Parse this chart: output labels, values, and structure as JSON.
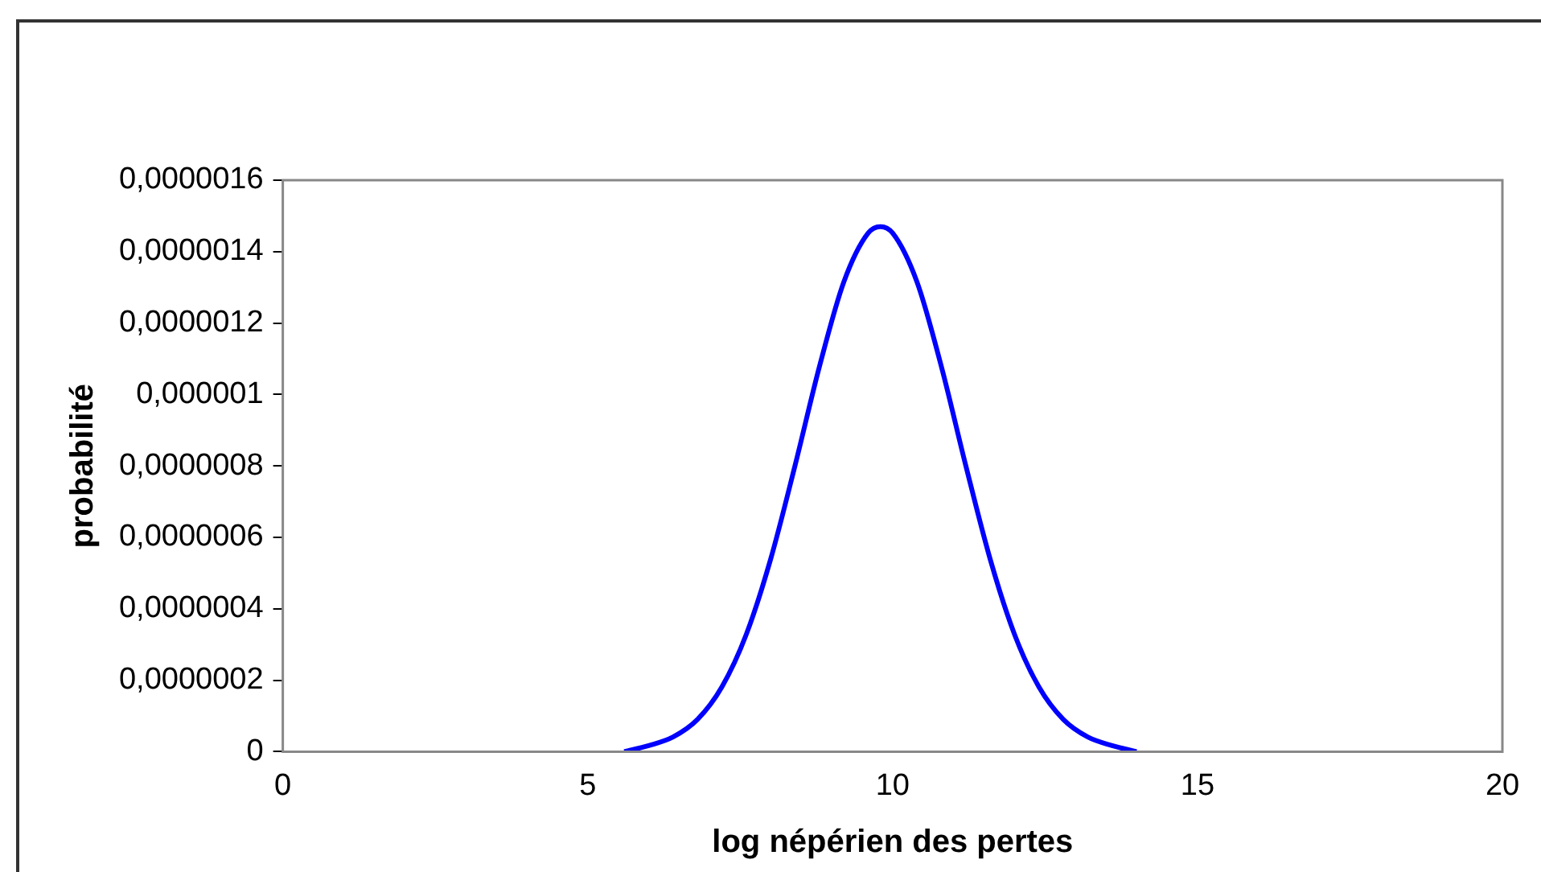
{
  "chart_data": {
    "type": "line",
    "xlabel": "log népérien des pertes",
    "ylabel": "probabilité",
    "x": [
      5.6,
      6.0,
      6.4,
      6.8,
      7.2,
      7.6,
      8.0,
      8.4,
      8.8,
      9.2,
      9.6,
      9.8,
      10.0,
      10.4,
      10.8,
      11.2,
      11.6,
      12.0,
      12.4,
      12.8,
      13.2,
      13.6,
      14.0
    ],
    "series": [
      {
        "color": "#0000ff",
        "values": [
          0,
          1.7e-08,
          4.1e-08,
          9e-08,
          1.81e-07,
          3.28e-07,
          5.39e-07,
          8.01e-07,
          1.078e-06,
          1.315e-06,
          1.452e-06,
          1.47e-06,
          1.452e-06,
          1.315e-06,
          1.078e-06,
          8.01e-07,
          5.39e-07,
          3.28e-07,
          1.81e-07,
          9e-08,
          4.1e-08,
          1.7e-08,
          0
        ]
      }
    ],
    "xlim": [
      0,
      20
    ],
    "xticks": [
      0,
      5,
      10,
      15,
      20
    ],
    "ylim": [
      0,
      1.6e-06
    ],
    "yticks": [
      0,
      {
        "value": 2e-07,
        "label": "0,0000002"
      },
      {
        "value": 4e-07,
        "label": "0,0000004"
      },
      {
        "value": 6e-07,
        "label": "0,0000006"
      },
      {
        "value": 8e-07,
        "label": "0,0000008"
      },
      {
        "value": 1e-06,
        "label": "0,000001"
      },
      {
        "value": 1.2e-06,
        "label": "0,0000012"
      },
      {
        "value": 1.4e-06,
        "label": "0,0000014"
      },
      {
        "value": 1.6e-06,
        "label": "0,0000016"
      }
    ],
    "grid": false,
    "legend": false,
    "marker": "none"
  }
}
